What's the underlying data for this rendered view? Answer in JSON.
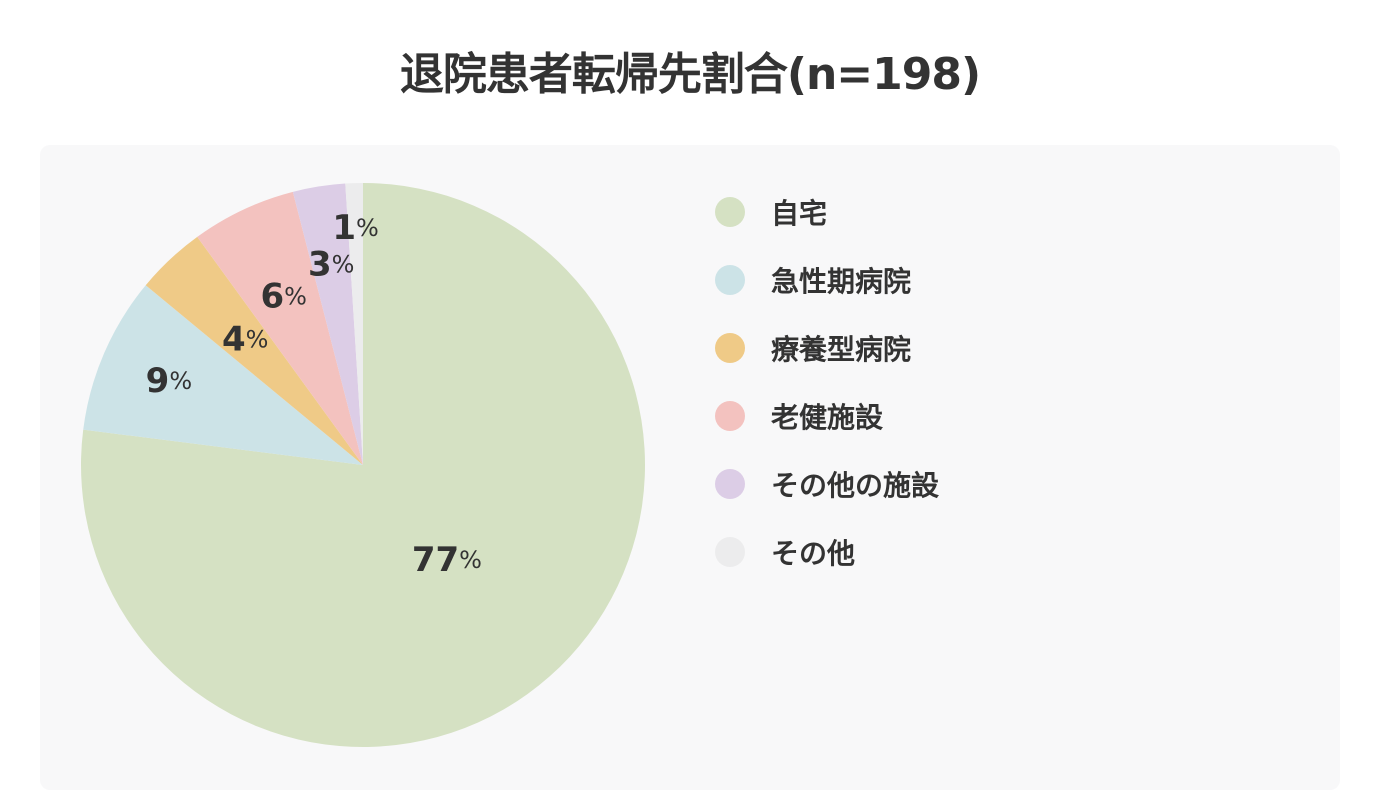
{
  "chart_data": {
    "type": "pie",
    "title": "退院患者転帰先割合(n=198)",
    "unit": "%",
    "start_angle_deg": 0,
    "direction": "clockwise",
    "legend_position": "right",
    "categories": [
      "自宅",
      "急性期病院",
      "療養型病院",
      "老健施設",
      "その他の施設",
      "その他"
    ],
    "values": [
      77,
      9,
      4,
      6,
      3,
      1
    ],
    "colors": [
      "#d5e1c3",
      "#cce3e7",
      "#efca87",
      "#f3c2bf",
      "#dccde6",
      "#ececed"
    ]
  }
}
